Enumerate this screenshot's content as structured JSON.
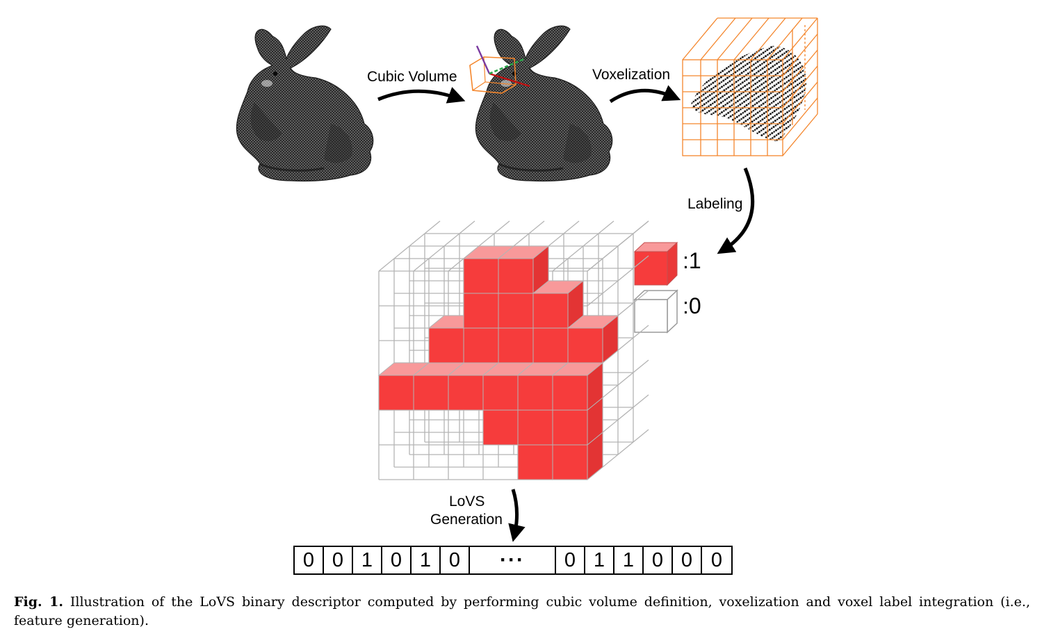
{
  "labels": {
    "cubic_volume": "Cubic Volume",
    "voxelization": "Voxelization",
    "labeling": "Labeling",
    "lovs_line1": "LoVS",
    "lovs_line2": "Generation",
    "legend_one": ":1",
    "legend_zero": ":0"
  },
  "descriptor": {
    "left_bits": [
      "0",
      "0",
      "1",
      "0",
      "1",
      "0"
    ],
    "ellipsis": "···",
    "right_bits": [
      "0",
      "1",
      "1",
      "0",
      "0",
      "0"
    ]
  },
  "caption": {
    "label": "Fig. 1.",
    "text": "Illustration of the LoVS binary descriptor computed by performing cubic volume definition, voxelization and voxel label integration (i.e., feature generation)."
  },
  "colors": {
    "voxel_fill": "#f63c3c",
    "voxel_top": "#f8999a",
    "grid_gray": "#b4b4b4",
    "voxel_orange": "#f4862c"
  }
}
